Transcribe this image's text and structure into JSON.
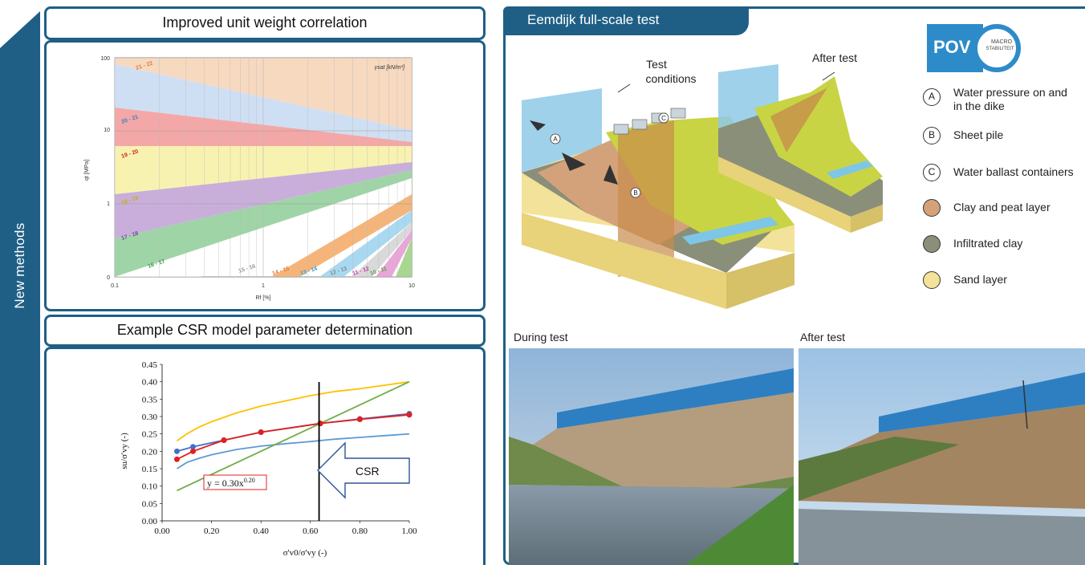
{
  "left": {
    "vertical_title": "New methods",
    "top_panel_title": "Improved unit weight correlation",
    "bottom_panel_title": "Example CSR model parameter determination"
  },
  "chart1": {
    "title": "",
    "ylabel": "qt [MPa]",
    "xlabel": "Rf [%]",
    "legend_symbol": "γsat [kN/m³]",
    "y_ticks": [
      "100",
      "10",
      "1",
      "0"
    ],
    "x_ticks": [
      "0.1",
      "1",
      "10"
    ],
    "band_labels": [
      "21 - 22",
      "20 - 21",
      "19 - 20",
      "18 - 19",
      "17 - 18",
      "16 - 17",
      "15 - 16",
      "14 - 15",
      "13 - 14",
      "12 - 13",
      "11 - 12",
      "10 - 11"
    ],
    "colors": {
      "b21": "#f7d9c0",
      "b20": "#cfdff3",
      "b19": "#f4a7a7",
      "b18": "#f8f2b0",
      "b17": "#c9aedb",
      "b16": "#9fd4a7",
      "b15": "#ffffff",
      "b14": "#f5b57a",
      "b13": "#a9d9f1",
      "b12": "#d9d9d9",
      "b11": "#e9a6d9",
      "b10": "#a8d88f"
    }
  },
  "chart_data": {
    "type": "scatter",
    "xlabel": "σ'v0/σ'vy (-)",
    "ylabel": "su/σ'vy (-)",
    "xlim": [
      0,
      1
    ],
    "ylim": [
      0,
      0.45
    ],
    "x_ticks": [
      "0.00",
      "0.20",
      "0.40",
      "0.60",
      "0.80",
      "1.00"
    ],
    "y_ticks": [
      "0.00",
      "0.05",
      "0.10",
      "0.15",
      "0.20",
      "0.25",
      "0.30",
      "0.35",
      "0.40",
      "0.45"
    ],
    "series": [
      {
        "color": "#ffc000",
        "x": [
          0.06,
          0.1,
          0.15,
          0.2,
          0.3,
          0.4,
          0.5,
          0.6,
          0.7,
          0.8,
          0.9,
          1.0
        ],
        "y": [
          0.23,
          0.25,
          0.27,
          0.285,
          0.31,
          0.33,
          0.345,
          0.36,
          0.372,
          0.38,
          0.39,
          0.4
        ]
      },
      {
        "color": "#5b9bd5",
        "x": [
          0.06,
          0.1,
          0.15,
          0.2,
          0.3,
          0.4,
          0.5,
          0.6,
          0.7,
          0.8,
          0.9,
          1.0
        ],
        "y": [
          0.15,
          0.168,
          0.18,
          0.19,
          0.205,
          0.215,
          0.222,
          0.228,
          0.235,
          0.24,
          0.245,
          0.25
        ]
      },
      {
        "color": "#70ad47",
        "x": [
          0.06,
          1.0
        ],
        "y": [
          0.087,
          0.4
        ]
      },
      {
        "color": "#4472c4",
        "x": [
          0.06,
          0.125,
          0.25,
          0.4,
          0.64,
          0.8,
          1.0
        ],
        "y": [
          0.2,
          0.213,
          0.232,
          0.255,
          0.28,
          0.293,
          0.308
        ],
        "markers": true
      },
      {
        "color": "#e02020",
        "x": [
          0.06,
          0.125,
          0.25,
          0.4,
          0.64,
          0.8,
          1.0
        ],
        "y": [
          0.177,
          0.2,
          0.232,
          0.255,
          0.28,
          0.292,
          0.305
        ],
        "markers": true
      }
    ],
    "vline_x": 0.635,
    "equation": "y = 0.30x",
    "equation_exp": "0.20",
    "arrow_label": "CSR"
  },
  "right": {
    "tab_title": "Eemdijk full-scale test",
    "label_test_conditions_1": "Test",
    "label_test_conditions_2": "conditions",
    "label_after_test_top": "After test",
    "logo_text": "POV",
    "logo_sub_1": "MACRO",
    "logo_sub_2": "STABILITEIT",
    "legend": [
      {
        "key": "A",
        "line1": "Water pressure on and",
        "line2": "in the dike"
      },
      {
        "key": "B",
        "line1": "Sheet pile",
        "line2": ""
      },
      {
        "key": "C",
        "line1": "Water ballast containers",
        "line2": ""
      },
      {
        "key": "",
        "line1": "Clay and peat layer",
        "line2": "",
        "color": "#d4a27a"
      },
      {
        "key": "",
        "line1": "Infiltrated clay",
        "line2": "",
        "color": "#8a8f7a"
      },
      {
        "key": "",
        "line1": "Sand layer",
        "line2": "",
        "color": "#f3e29a"
      }
    ],
    "photo_left_caption": "During test",
    "photo_right_caption": "After test",
    "diagram_markers": [
      "A",
      "B",
      "C"
    ]
  }
}
